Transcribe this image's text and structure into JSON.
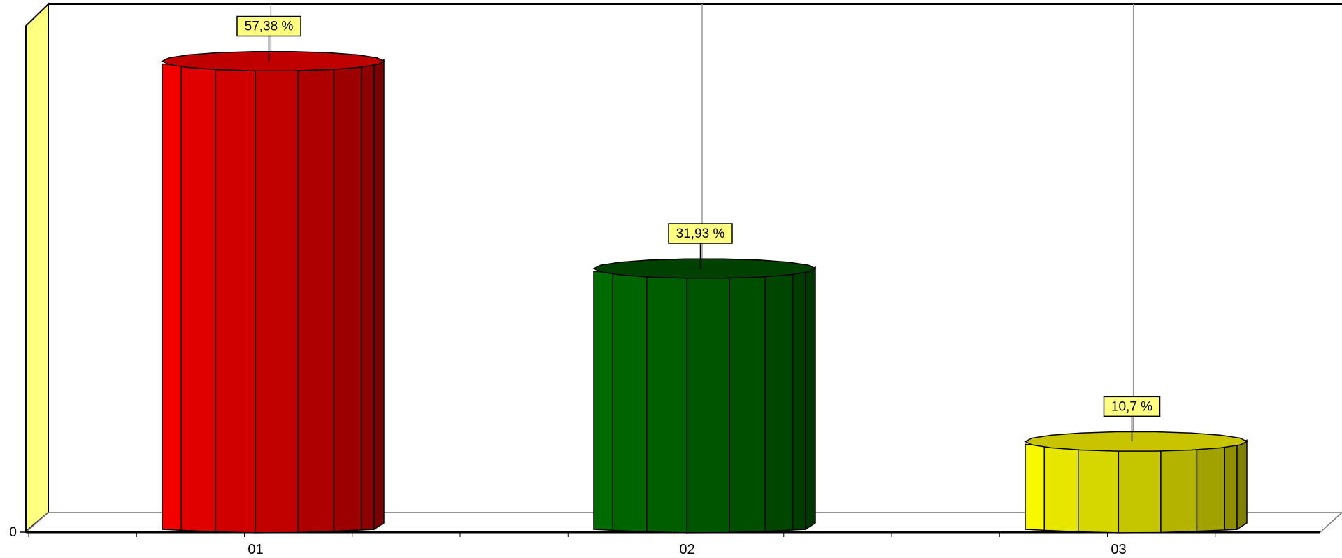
{
  "chart_data": {
    "type": "bar",
    "style": "3d-cylinder",
    "categories": [
      "01",
      "02",
      "03"
    ],
    "values": [
      57.38,
      31.93,
      10.7
    ],
    "data_labels": [
      "57,38 %",
      "31,93 %",
      "10,7 %"
    ],
    "colors": [
      "#e00000",
      "#006400",
      "#e6e600"
    ],
    "cap_colors": [
      "#c00000",
      "#004000",
      "#c8c400"
    ],
    "y_tick_labels": [
      "0"
    ],
    "ylim": [
      0,
      65
    ],
    "grid": true,
    "legend": "none",
    "wall_color": "#ffff80",
    "label_bg": "#ffff80"
  }
}
